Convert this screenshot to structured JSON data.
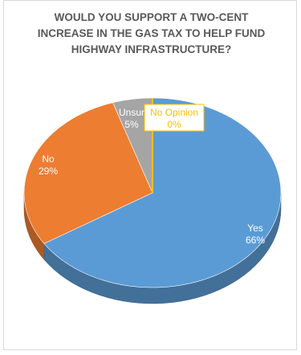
{
  "chart_data": {
    "type": "pie",
    "title": "WOULD YOU SUPPORT A TWO-CENT INCREASE IN THE GAS TAX TO HELP FUND HIGHWAY INFRASTRUCTURE?",
    "categories": [
      "Yes",
      "No",
      "Unsure",
      "No Opinion"
    ],
    "values": [
      66,
      29,
      5,
      0
    ],
    "labels": [
      {
        "category": "Yes",
        "percent": "66%"
      },
      {
        "category": "No",
        "percent": "29%"
      },
      {
        "category": "Unsure",
        "percent": "5%"
      },
      {
        "category": "No Opinion",
        "percent": "0%"
      }
    ],
    "colors": {
      "Yes": "#5b9bd5",
      "No": "#ed7d31",
      "Unsure": "#a5a5a5",
      "No Opinion": "#ffc000"
    },
    "style": "3d",
    "legend": "none"
  }
}
